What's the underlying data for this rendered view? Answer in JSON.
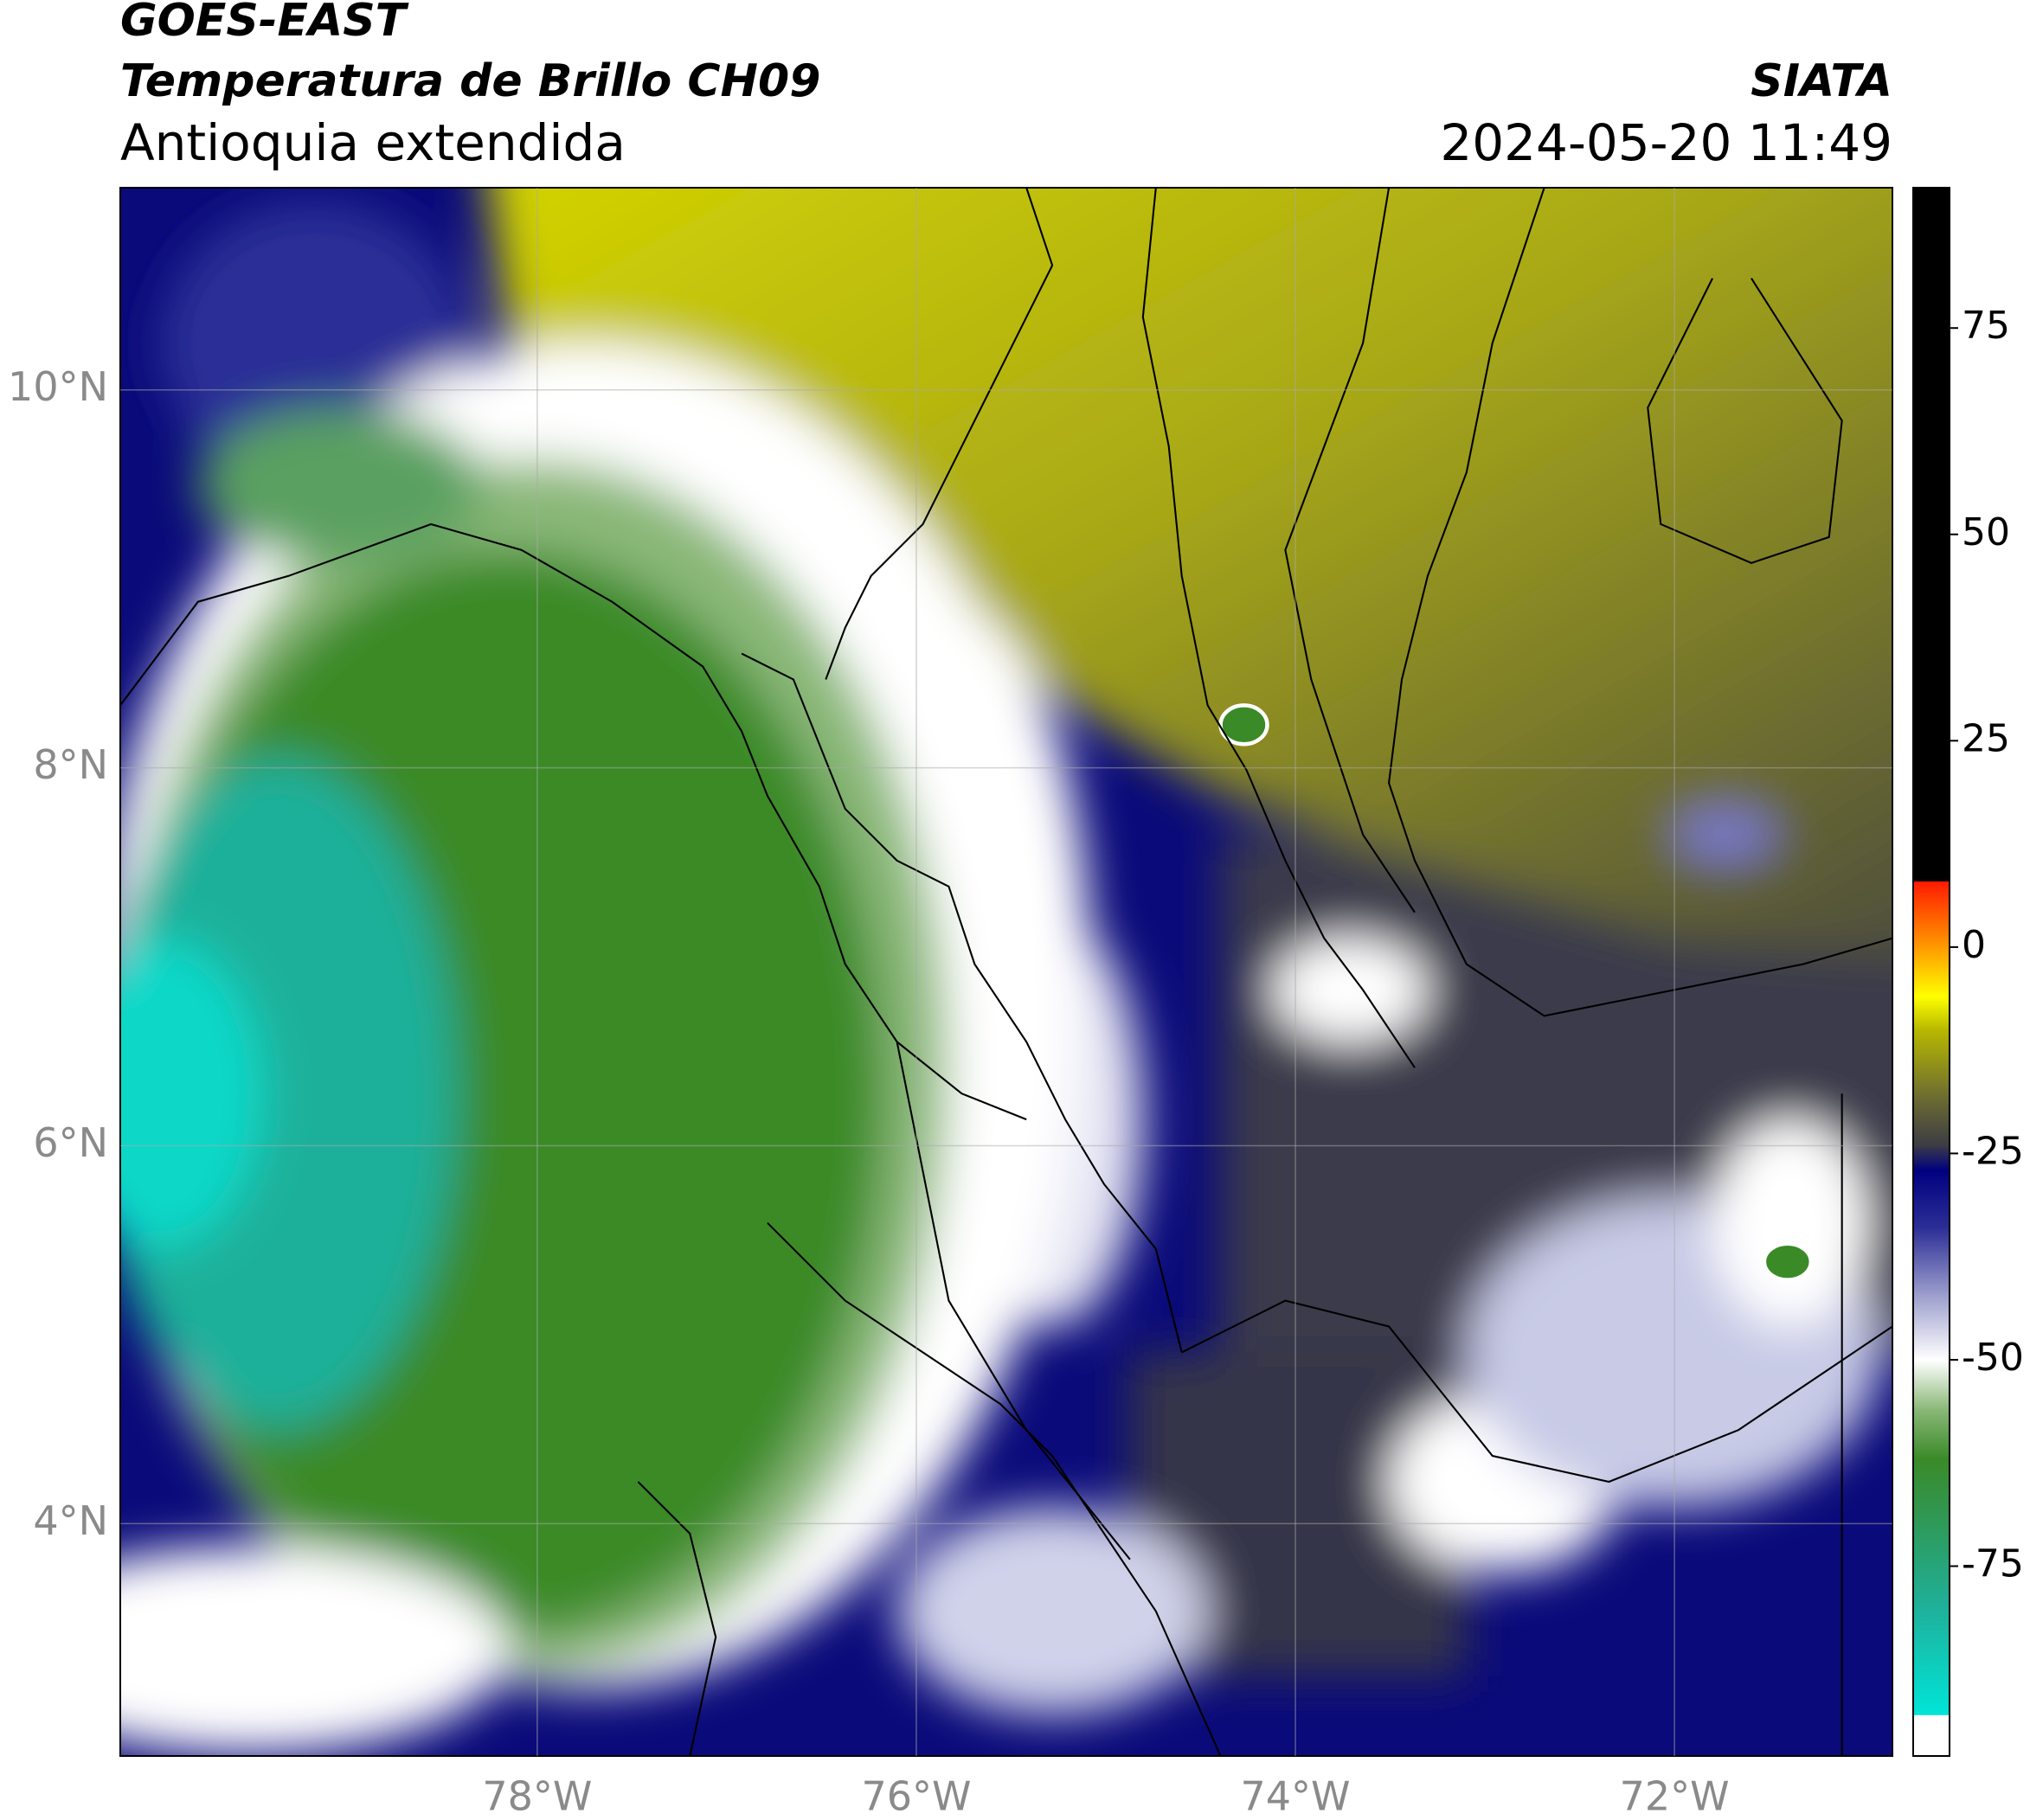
{
  "header": {
    "title": "GOES-EAST",
    "subtitle": "Temperatura de Brillo CH09",
    "region": "Antioquia extendida",
    "source": "SIATA",
    "timestamp": "2024-05-20 11:49"
  },
  "map": {
    "xlim": [
      -80.2,
      -70.85
    ],
    "ylim": [
      2.77,
      11.07
    ],
    "xticks": [
      {
        "value": -78,
        "label": "78°W"
      },
      {
        "value": -76,
        "label": "76°W"
      },
      {
        "value": -74,
        "label": "74°W"
      },
      {
        "value": -72,
        "label": "72°W"
      }
    ],
    "yticks": [
      {
        "value": 4,
        "label": "4°N"
      },
      {
        "value": 6,
        "label": "6°N"
      },
      {
        "value": 8,
        "label": "8°N"
      },
      {
        "value": 10,
        "label": "10°N"
      }
    ],
    "grid": true
  },
  "colorbar": {
    "lim": [
      -98,
      92
    ],
    "ticks": [
      -75,
      -50,
      -25,
      0,
      25,
      50,
      75
    ],
    "stops": [
      {
        "value": -98,
        "color": "#ffffff"
      },
      {
        "value": -93,
        "color": "#ffffff"
      },
      {
        "value": -93,
        "color": "#00e5d8"
      },
      {
        "value": -80,
        "color": "#1fb09a"
      },
      {
        "value": -70,
        "color": "#2e9a5a"
      },
      {
        "value": -62,
        "color": "#3a8a28"
      },
      {
        "value": -56,
        "color": "#8ab878"
      },
      {
        "value": -50,
        "color": "#ffffff"
      },
      {
        "value": -42,
        "color": "#9a9ccc"
      },
      {
        "value": -34,
        "color": "#2c2e96"
      },
      {
        "value": -27,
        "color": "#000080"
      },
      {
        "value": -24,
        "color": "#3c3c44"
      },
      {
        "value": -18,
        "color": "#6e6e30"
      },
      {
        "value": -10,
        "color": "#b8b800"
      },
      {
        "value": -6,
        "color": "#ffff00"
      },
      {
        "value": 0,
        "color": "#ff9a00"
      },
      {
        "value": 8,
        "color": "#ff1a00"
      },
      {
        "value": 8,
        "color": "#000000"
      },
      {
        "value": 92,
        "color": "#000000"
      }
    ]
  }
}
